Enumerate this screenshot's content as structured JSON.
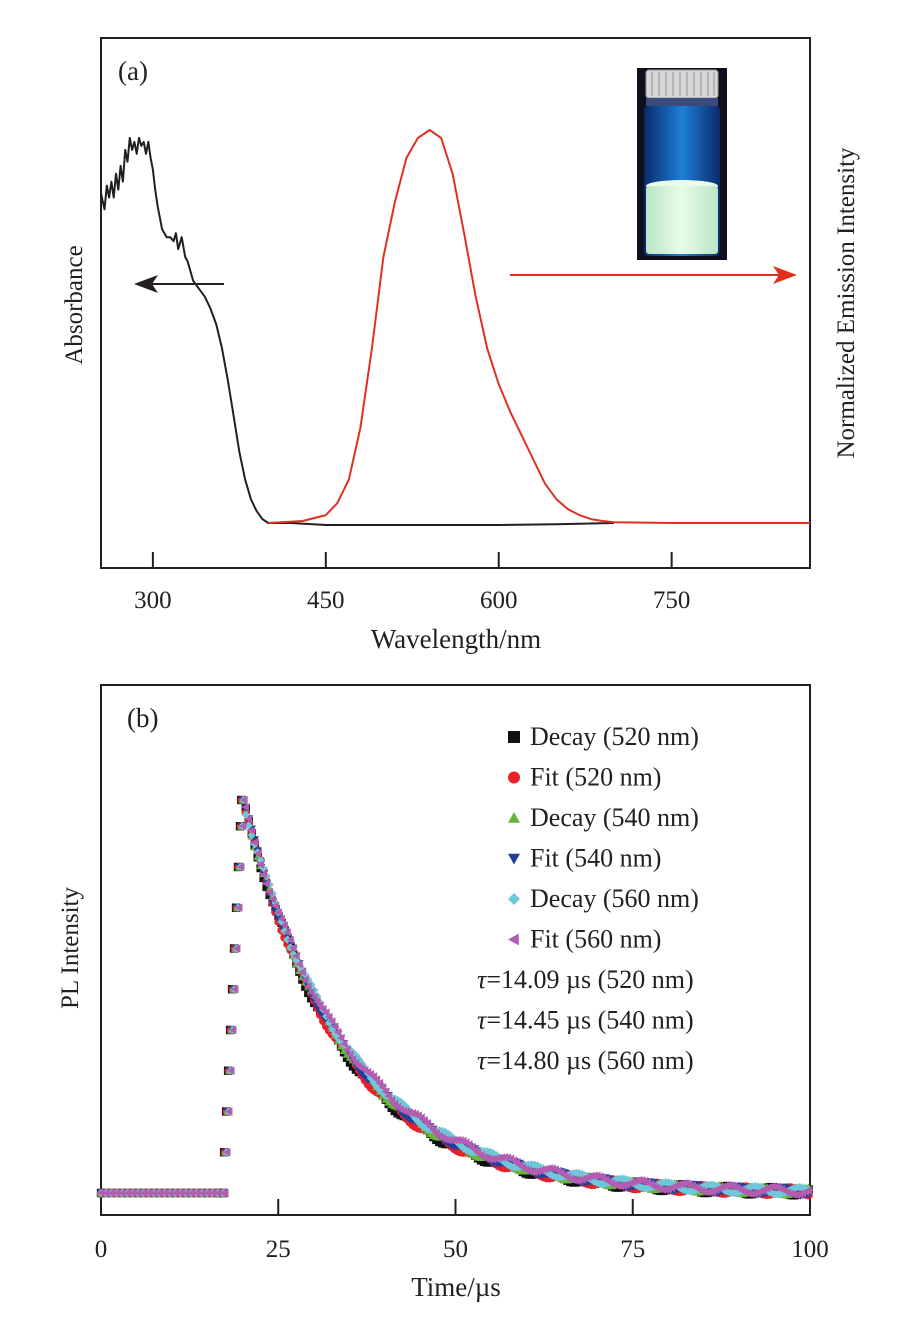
{
  "chart_data": [
    {
      "type": "line",
      "panel_label": "(a)",
      "xlabel": "Wavelength/nm",
      "ylabel_left": "Absorbance",
      "ylabel_right": "Normalized Emission Intensity",
      "xlim": [
        255,
        870
      ],
      "ylim": [
        0,
        1.13
      ],
      "xticks": [
        300,
        450,
        600,
        750
      ],
      "xtick_labels": [
        "300",
        "450",
        "600",
        "750"
      ],
      "inset": "photo of vial with green-emitting powder under UV light",
      "colors": {
        "absorbance": "#231f20",
        "emission": "#e0301e"
      },
      "series": [
        {
          "name": "Absorbance",
          "axis": "left",
          "x": [
            255,
            258,
            260,
            262,
            264,
            266,
            268,
            270,
            272,
            274,
            276,
            278,
            280,
            282,
            284,
            286,
            288,
            290,
            292,
            294,
            296,
            298,
            300,
            302,
            304,
            306,
            308,
            310,
            312,
            315,
            318,
            320,
            322,
            325,
            328,
            330,
            335,
            340,
            345,
            350,
            355,
            360,
            365,
            370,
            375,
            380,
            385,
            390,
            395,
            400,
            420,
            450,
            500,
            550,
            600,
            650,
            700
          ],
          "y": [
            0.84,
            0.8,
            0.86,
            0.83,
            0.87,
            0.83,
            0.89,
            0.85,
            0.91,
            0.87,
            0.95,
            0.92,
            0.98,
            0.95,
            0.97,
            0.94,
            0.98,
            0.96,
            0.97,
            0.94,
            0.97,
            0.93,
            0.9,
            0.85,
            0.81,
            0.78,
            0.75,
            0.74,
            0.73,
            0.73,
            0.72,
            0.74,
            0.7,
            0.73,
            0.68,
            0.67,
            0.62,
            0.6,
            0.58,
            0.55,
            0.51,
            0.45,
            0.37,
            0.28,
            0.19,
            0.12,
            0.07,
            0.04,
            0.02,
            0.01,
            0.01,
            0.005,
            0.005,
            0.005,
            0.005,
            0.007,
            0.01
          ]
        },
        {
          "name": "Normalized Emission",
          "axis": "right",
          "x": [
            400,
            430,
            450,
            460,
            470,
            480,
            490,
            500,
            510,
            520,
            530,
            540,
            550,
            560,
            570,
            580,
            590,
            600,
            610,
            620,
            630,
            640,
            650,
            660,
            670,
            680,
            690,
            700,
            750,
            800,
            870
          ],
          "y": [
            0.01,
            0.015,
            0.03,
            0.06,
            0.12,
            0.25,
            0.45,
            0.68,
            0.82,
            0.93,
            0.98,
            1.0,
            0.98,
            0.89,
            0.74,
            0.58,
            0.45,
            0.36,
            0.29,
            0.23,
            0.17,
            0.11,
            0.07,
            0.045,
            0.03,
            0.02,
            0.015,
            0.012,
            0.01,
            0.01,
            0.01
          ]
        }
      ]
    },
    {
      "type": "scatter",
      "panel_label": "(b)",
      "xlabel": "Time/µs",
      "ylabel": "PL Intensity",
      "xlim": [
        0,
        100
      ],
      "ylim": [
        0,
        1.07
      ],
      "xticks": [
        0,
        25,
        50,
        75,
        100
      ],
      "xtick_labels": [
        "0",
        "25",
        "50",
        "75",
        "100"
      ],
      "legend_position": "top-right",
      "series": [
        {
          "name": "Decay (520 nm)",
          "marker": "square",
          "color": "#111111",
          "tau": 14.09,
          "t_peak": 20,
          "rise_start": 17.3
        },
        {
          "name": "Fit (520 nm)",
          "marker": "circle",
          "color": "#e8202a",
          "tau": 14.09,
          "t_peak": 20,
          "rise_start": 17.3
        },
        {
          "name": "Decay (540 nm)",
          "marker": "triangle-up",
          "color": "#6ab43e",
          "tau": 14.45,
          "t_peak": 20,
          "rise_start": 17.3
        },
        {
          "name": "Fit (540 nm)",
          "marker": "triangle-down",
          "color": "#1f3f9a",
          "tau": 14.45,
          "t_peak": 20,
          "rise_start": 17.3
        },
        {
          "name": "Decay (560 nm)",
          "marker": "diamond",
          "color": "#6fc7d9",
          "tau": 14.8,
          "t_peak": 20,
          "rise_start": 17.3
        },
        {
          "name": "Fit (560 nm)",
          "marker": "triangle-left",
          "color": "#b35db2",
          "tau": 14.8,
          "t_peak": 20,
          "rise_start": 17.3
        }
      ],
      "annotations": [
        {
          "tau_symbol": "τ",
          "text": "=14.09 µs (520 nm)"
        },
        {
          "tau_symbol": "τ",
          "text": "=14.45 µs (540 nm)"
        },
        {
          "tau_symbol": "τ",
          "text": "=14.80 µs (560 nm)"
        }
      ]
    }
  ]
}
